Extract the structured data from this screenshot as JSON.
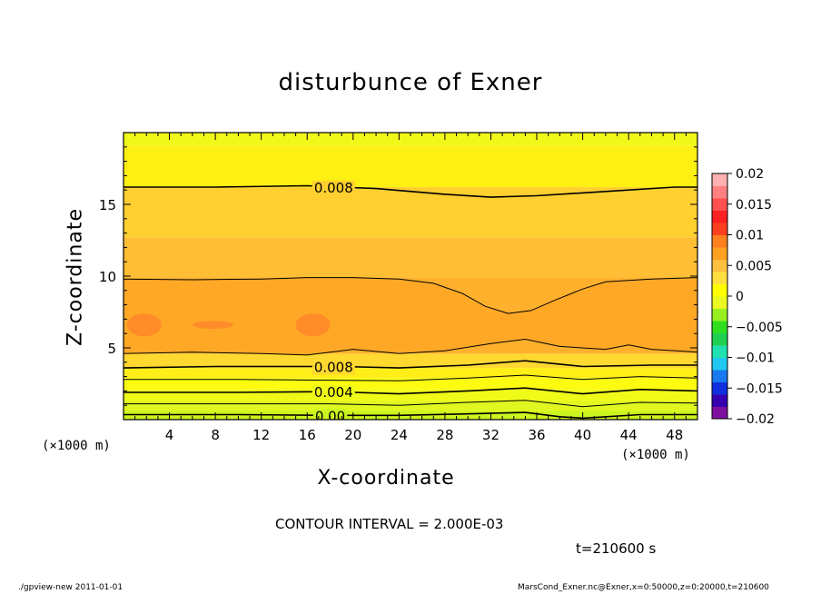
{
  "chart_data": {
    "type": "heatmap",
    "title": "disturbunce of Exner",
    "xlabel": "X-coordinate",
    "ylabel": "Z-coordinate",
    "x_unit": "(×1000 m)",
    "xlim": [
      0,
      50
    ],
    "ylim": [
      0,
      20
    ],
    "x_ticks": [
      4,
      8,
      12,
      16,
      20,
      24,
      28,
      32,
      36,
      40,
      44,
      48
    ],
    "y_ticks": [
      5,
      10,
      15
    ],
    "colorbar": {
      "range": [
        -0.02,
        0.02
      ],
      "tick_values": [
        0.02,
        0.015,
        0.01,
        0.005,
        0,
        -0.005,
        -0.01,
        -0.015,
        -0.02
      ],
      "tick_labels": [
        "0.02",
        "0.015",
        "0.01",
        "0.005",
        "0",
        "−0.005",
        "−0.01",
        "−0.015",
        "−0.02"
      ],
      "colors": [
        "#7f0f9e",
        "#3600b0",
        "#1030e0",
        "#1878f0",
        "#20c8f0",
        "#20e0b0",
        "#20d050",
        "#30e020",
        "#98f020",
        "#e8f820",
        "#ffff00",
        "#ffe040",
        "#ffc040",
        "#ffa020",
        "#ff8020",
        "#ff4020",
        "#ff2020",
        "#ff5050",
        "#ff8080",
        "#ffb0b0"
      ]
    },
    "contour_interval_text": "CONTOUR INTERVAL = 2.000E-03",
    "contour_labels": [
      {
        "text": "0.008",
        "x": 18.3,
        "z": 16.2
      },
      {
        "text": "0.008",
        "x": 18.3,
        "z": 3.7
      },
      {
        "text": "0.004",
        "x": 18.3,
        "z": 1.95
      },
      {
        "text": "0.00",
        "x": 18.0,
        "z": 0.3
      }
    ],
    "bands": [
      {
        "value": 0.003,
        "color": "#ccf41e",
        "z": [
          0,
          0.6
        ]
      },
      {
        "value": 0.004,
        "color": "#e0f820",
        "z": [
          0.6,
          1.3
        ]
      },
      {
        "value": 0.005,
        "color": "#f0fa18",
        "z": [
          1.3,
          2.1
        ]
      },
      {
        "value": 0.006,
        "color": "#fcfb10",
        "z": [
          2.1,
          2.9
        ]
      },
      {
        "value": 0.007,
        "color": "#ffee18",
        "z": [
          2.9,
          3.6
        ]
      },
      {
        "value": 0.008,
        "color": "#ffd830",
        "z": [
          3.6,
          4.6
        ]
      },
      {
        "value": 0.009,
        "color": "#ffb02c",
        "z": [
          4.6,
          9.9
        ]
      },
      {
        "value": 0.0085,
        "color": "#ffbe34",
        "z": [
          9.9,
          12.7
        ]
      },
      {
        "value": 0.008,
        "color": "#ffd030",
        "z": [
          12.7,
          16.2
        ]
      },
      {
        "value": 0.007,
        "color": "#fff014",
        "z": [
          16.2,
          19.1
        ]
      },
      {
        "value": 0.0055,
        "color": "#f0f81a",
        "z": [
          19.1,
          20
        ]
      }
    ],
    "contours": [
      {
        "level": 0.008,
        "points": [
          [
            0,
            16.2
          ],
          [
            8,
            16.2
          ],
          [
            16,
            16.3
          ],
          [
            22,
            16.1
          ],
          [
            28,
            15.7
          ],
          [
            32,
            15.5
          ],
          [
            36,
            15.6
          ],
          [
            42,
            15.9
          ],
          [
            48,
            16.2
          ],
          [
            50,
            16.2
          ]
        ]
      },
      {
        "level": 0.009,
        "points": [
          [
            0,
            9.8
          ],
          [
            6,
            9.75
          ],
          [
            12,
            9.8
          ],
          [
            16,
            9.9
          ],
          [
            20,
            9.9
          ],
          [
            24,
            9.8
          ],
          [
            27,
            9.5
          ],
          [
            29.5,
            8.8
          ],
          [
            31.5,
            7.9
          ],
          [
            33.5,
            7.4
          ],
          [
            35.5,
            7.6
          ],
          [
            37.5,
            8.3
          ],
          [
            40,
            9.1
          ],
          [
            42,
            9.6
          ],
          [
            46,
            9.8
          ],
          [
            50,
            9.9
          ]
        ]
      },
      {
        "level": 0.009,
        "points": [
          [
            0,
            4.6
          ],
          [
            6,
            4.7
          ],
          [
            12,
            4.6
          ],
          [
            16,
            4.5
          ],
          [
            20,
            4.9
          ],
          [
            24,
            4.6
          ],
          [
            28,
            4.8
          ],
          [
            32,
            5.3
          ],
          [
            35,
            5.6
          ],
          [
            38,
            5.1
          ],
          [
            42,
            4.9
          ],
          [
            44,
            5.2
          ],
          [
            46,
            4.9
          ],
          [
            50,
            4.7
          ]
        ]
      },
      {
        "level": 0.008,
        "points": [
          [
            0,
            3.6
          ],
          [
            8,
            3.7
          ],
          [
            14,
            3.7
          ],
          [
            19,
            3.7
          ],
          [
            24,
            3.6
          ],
          [
            30,
            3.8
          ],
          [
            35,
            4.1
          ],
          [
            40,
            3.7
          ],
          [
            46,
            3.8
          ],
          [
            50,
            3.8
          ]
        ]
      },
      {
        "level": 0.006,
        "points": [
          [
            0,
            2.8
          ],
          [
            10,
            2.8
          ],
          [
            18,
            2.75
          ],
          [
            24,
            2.7
          ],
          [
            30,
            2.9
          ],
          [
            35,
            3.1
          ],
          [
            40,
            2.8
          ],
          [
            45,
            3.0
          ],
          [
            50,
            2.9
          ]
        ]
      },
      {
        "level": 0.004,
        "points": [
          [
            0,
            1.9
          ],
          [
            10,
            1.9
          ],
          [
            18,
            1.95
          ],
          [
            24,
            1.8
          ],
          [
            30,
            2.0
          ],
          [
            35,
            2.2
          ],
          [
            40,
            1.8
          ],
          [
            45,
            2.1
          ],
          [
            50,
            2.0
          ]
        ]
      },
      {
        "level": 0.002,
        "points": [
          [
            0,
            1.1
          ],
          [
            10,
            1.1
          ],
          [
            18,
            1.1
          ],
          [
            24,
            1.0
          ],
          [
            30,
            1.2
          ],
          [
            35,
            1.35
          ],
          [
            40,
            0.9
          ],
          [
            45,
            1.2
          ],
          [
            50,
            1.15
          ]
        ]
      },
      {
        "level": 0.0,
        "points": [
          [
            0,
            0.35
          ],
          [
            10,
            0.35
          ],
          [
            18,
            0.3
          ],
          [
            24,
            0.3
          ],
          [
            30,
            0.4
          ],
          [
            35,
            0.5
          ],
          [
            38,
            0.2
          ],
          [
            40,
            0.1
          ],
          [
            45,
            0.35
          ],
          [
            50,
            0.35
          ]
        ]
      }
    ],
    "blobs": [
      {
        "x": 1.8,
        "z": 6.6,
        "rx": 1.5,
        "rz": 0.8,
        "color": "#ff8c28"
      },
      {
        "x": 7.8,
        "z": 6.6,
        "rx": 1.8,
        "rz": 0.28,
        "color": "#ff8c28"
      },
      {
        "x": 16.5,
        "z": 6.6,
        "rx": 1.5,
        "rz": 0.8,
        "color": "#ff8c28"
      }
    ],
    "uniform_band": {
      "color": "#ffa826",
      "z": [
        4.6,
        9.9
      ]
    }
  },
  "text": {
    "x_unit_left": "(×1000 m)",
    "x_unit_right": "(×1000 m)",
    "time": "t=210600 s",
    "footer_left": "./gpview-new   2011-01-01",
    "footer_right": "MarsCond_Exner.nc@Exner,x=0:50000,z=0:20000,t=210600"
  }
}
